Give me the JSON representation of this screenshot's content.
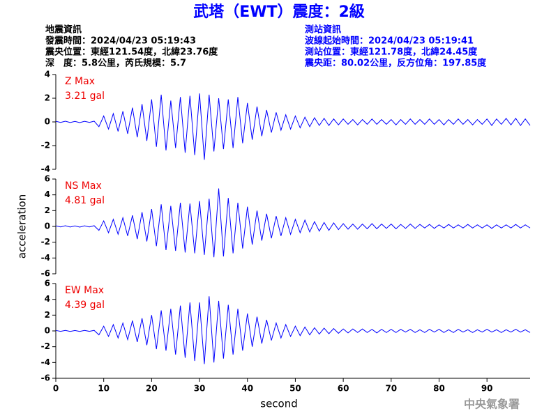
{
  "header": {
    "title": "武塔（EWT）震度：2級",
    "event_info": [
      "地震資訊",
      "發震時間：2024/04/23 05:19:43",
      "震央位置：東經121.54度，北緯23.76度",
      "深　度：5.8公里，芮氏規模：5.7"
    ],
    "station_info": [
      "測站資訊",
      "波線起始時間：2024/04/23 05:19:41",
      "測站位置：東經121.78度，北緯24.45度",
      "震央距：80.02公里，反方位角：197.85度"
    ]
  },
  "footer": "中央氣象署",
  "chart_data": [
    {
      "type": "line",
      "label": "Z Max",
      "annotation": "3.21 gal",
      "color": "#0000ff",
      "xlim": [
        0,
        99
      ],
      "ylim": [
        -4,
        4
      ],
      "yticks": [
        -4,
        -2,
        0,
        2,
        4
      ],
      "x": [
        0,
        1,
        2,
        3,
        4,
        5,
        6,
        7,
        8,
        9,
        10,
        11,
        12,
        13,
        14,
        15,
        16,
        17,
        18,
        19,
        20,
        21,
        22,
        23,
        24,
        25,
        26,
        27,
        28,
        29,
        30,
        31,
        32,
        33,
        34,
        35,
        36,
        37,
        38,
        39,
        40,
        41,
        42,
        43,
        44,
        45,
        46,
        47,
        48,
        49,
        50,
        51,
        52,
        53,
        54,
        55,
        56,
        57,
        58,
        59,
        60,
        61,
        62,
        63,
        64,
        65,
        66,
        67,
        68,
        69,
        70,
        71,
        72,
        73,
        74,
        75,
        76,
        77,
        78,
        79,
        80,
        81,
        82,
        83,
        84,
        85,
        86,
        87,
        88,
        89,
        90,
        91,
        92,
        93,
        94,
        95,
        96,
        97,
        98,
        99
      ],
      "values": [
        0.05,
        -0.04,
        0.06,
        -0.05,
        0.04,
        -0.06,
        0.05,
        -0.04,
        0.06,
        -0.4,
        0.5,
        -0.6,
        0.7,
        -0.8,
        0.9,
        -1.0,
        1.2,
        -1.3,
        1.5,
        -1.6,
        1.9,
        -2.1,
        2.3,
        -2.4,
        1.8,
        -2.2,
        2.1,
        -2.6,
        2.2,
        -2.8,
        2.4,
        -3.2,
        2.3,
        -2.5,
        2.0,
        -2.3,
        1.9,
        -2.2,
        2.1,
        -1.8,
        1.6,
        -1.5,
        1.3,
        -1.2,
        1.0,
        -0.9,
        0.8,
        -0.7,
        0.6,
        -0.6,
        0.5,
        -0.5,
        0.4,
        -0.4,
        0.35,
        -0.3,
        0.3,
        -0.3,
        0.25,
        -0.25,
        0.25,
        -0.2,
        0.2,
        -0.25,
        0.2,
        -0.2,
        0.25,
        -0.2,
        0.2,
        -0.2,
        0.2,
        -0.25,
        0.2,
        -0.2,
        0.25,
        -0.2,
        0.2,
        -0.2,
        0.25,
        -0.2,
        0.2,
        -0.25,
        0.2,
        -0.2,
        0.25,
        -0.2,
        0.2,
        -0.25,
        0.2,
        -0.2,
        0.25,
        -0.3,
        0.25,
        -0.2,
        0.3,
        -0.25,
        0.3,
        -0.3,
        0.25,
        -0.3
      ]
    },
    {
      "type": "line",
      "label": "NS Max",
      "annotation": "4.81 gal",
      "color": "#0000ff",
      "ylabel": "acceleration",
      "xlim": [
        0,
        99
      ],
      "ylim": [
        -6,
        6
      ],
      "yticks": [
        -6,
        -4,
        -2,
        0,
        2,
        4,
        6
      ],
      "x": [
        0,
        1,
        2,
        3,
        4,
        5,
        6,
        7,
        8,
        9,
        10,
        11,
        12,
        13,
        14,
        15,
        16,
        17,
        18,
        19,
        20,
        21,
        22,
        23,
        24,
        25,
        26,
        27,
        28,
        29,
        30,
        31,
        32,
        33,
        34,
        35,
        36,
        37,
        38,
        39,
        40,
        41,
        42,
        43,
        44,
        45,
        46,
        47,
        48,
        49,
        50,
        51,
        52,
        53,
        54,
        55,
        56,
        57,
        58,
        59,
        60,
        61,
        62,
        63,
        64,
        65,
        66,
        67,
        68,
        69,
        70,
        71,
        72,
        73,
        74,
        75,
        76,
        77,
        78,
        79,
        80,
        81,
        82,
        83,
        84,
        85,
        86,
        87,
        88,
        89,
        90,
        91,
        92,
        93,
        94,
        95,
        96,
        97,
        98,
        99
      ],
      "values": [
        0.08,
        -0.07,
        0.09,
        -0.08,
        0.07,
        -0.09,
        0.08,
        -0.07,
        0.09,
        -0.5,
        0.7,
        -0.8,
        0.9,
        -1.0,
        1.1,
        -1.2,
        1.4,
        -1.6,
        1.8,
        -1.9,
        2.2,
        -2.5,
        2.8,
        -3.0,
        2.6,
        -3.1,
        3.0,
        -3.3,
        2.9,
        -3.4,
        3.2,
        -3.6,
        3.5,
        -3.9,
        4.81,
        -3.8,
        3.6,
        -3.4,
        3.0,
        -2.8,
        2.5,
        -2.3,
        2.0,
        -1.8,
        1.6,
        -1.5,
        1.3,
        -1.2,
        1.1,
        -1.0,
        0.9,
        -0.8,
        0.8,
        -0.7,
        0.6,
        -0.6,
        0.5,
        -0.5,
        0.45,
        -0.4,
        0.35,
        -0.35,
        0.3,
        -0.35,
        0.3,
        -0.3,
        0.35,
        -0.3,
        0.3,
        -0.25,
        0.3,
        -0.3,
        0.25,
        -0.25,
        0.3,
        -0.25,
        0.25,
        -0.2,
        0.25,
        -0.25,
        0.2,
        -0.2,
        0.25,
        -0.2,
        0.2,
        -0.2,
        0.25,
        -0.2,
        0.2,
        -0.2,
        0.2,
        -0.25,
        0.2,
        -0.2,
        0.2,
        -0.2,
        0.25,
        -0.2,
        0.2,
        -0.2
      ]
    },
    {
      "type": "line",
      "label": "EW Max",
      "annotation": "4.39 gal",
      "color": "#0000ff",
      "xlabel": "second",
      "xlim": [
        0,
        99
      ],
      "ylim": [
        -6,
        6
      ],
      "yticks": [
        -6,
        -4,
        -2,
        0,
        2,
        4,
        6
      ],
      "xticks": [
        0,
        10,
        20,
        30,
        40,
        50,
        60,
        70,
        80,
        90
      ],
      "x": [
        0,
        1,
        2,
        3,
        4,
        5,
        6,
        7,
        8,
        9,
        10,
        11,
        12,
        13,
        14,
        15,
        16,
        17,
        18,
        19,
        20,
        21,
        22,
        23,
        24,
        25,
        26,
        27,
        28,
        29,
        30,
        31,
        32,
        33,
        34,
        35,
        36,
        37,
        38,
        39,
        40,
        41,
        42,
        43,
        44,
        45,
        46,
        47,
        48,
        49,
        50,
        51,
        52,
        53,
        54,
        55,
        56,
        57,
        58,
        59,
        60,
        61,
        62,
        63,
        64,
        65,
        66,
        67,
        68,
        69,
        70,
        71,
        72,
        73,
        74,
        75,
        76,
        77,
        78,
        79,
        80,
        81,
        82,
        83,
        84,
        85,
        86,
        87,
        88,
        89,
        90,
        91,
        92,
        93,
        94,
        95,
        96,
        97,
        98,
        99
      ],
      "values": [
        0.06,
        -0.05,
        0.07,
        -0.06,
        0.05,
        -0.07,
        0.06,
        -0.05,
        0.07,
        -0.5,
        0.6,
        -0.7,
        0.8,
        -0.9,
        1.0,
        -1.1,
        1.3,
        -1.4,
        1.6,
        -1.8,
        2.0,
        -2.3,
        2.6,
        -2.5,
        2.8,
        -3.0,
        3.2,
        -3.4,
        3.6,
        -3.8,
        3.6,
        -4.2,
        4.39,
        -4.0,
        3.8,
        -3.5,
        3.3,
        -3.0,
        2.8,
        -2.5,
        2.2,
        -2.0,
        1.8,
        -1.6,
        1.4,
        -1.2,
        1.0,
        -0.9,
        0.8,
        -0.7,
        0.6,
        -0.6,
        0.5,
        -0.5,
        0.4,
        -0.4,
        0.35,
        -0.35,
        0.3,
        -0.3,
        0.25,
        -0.25,
        0.25,
        -0.2,
        0.25,
        -0.2,
        0.2,
        -0.25,
        0.2,
        -0.2,
        0.2,
        -0.2,
        0.2,
        -0.15,
        0.2,
        -0.2,
        0.15,
        -0.2,
        0.2,
        -0.15,
        0.2,
        -0.2,
        0.15,
        -0.2,
        0.2,
        -0.15,
        0.15,
        -0.2,
        0.15,
        -0.15,
        0.2,
        -0.15,
        0.15,
        -0.2,
        0.15,
        -0.15,
        0.2,
        -0.15,
        0.15,
        -0.2
      ]
    }
  ]
}
